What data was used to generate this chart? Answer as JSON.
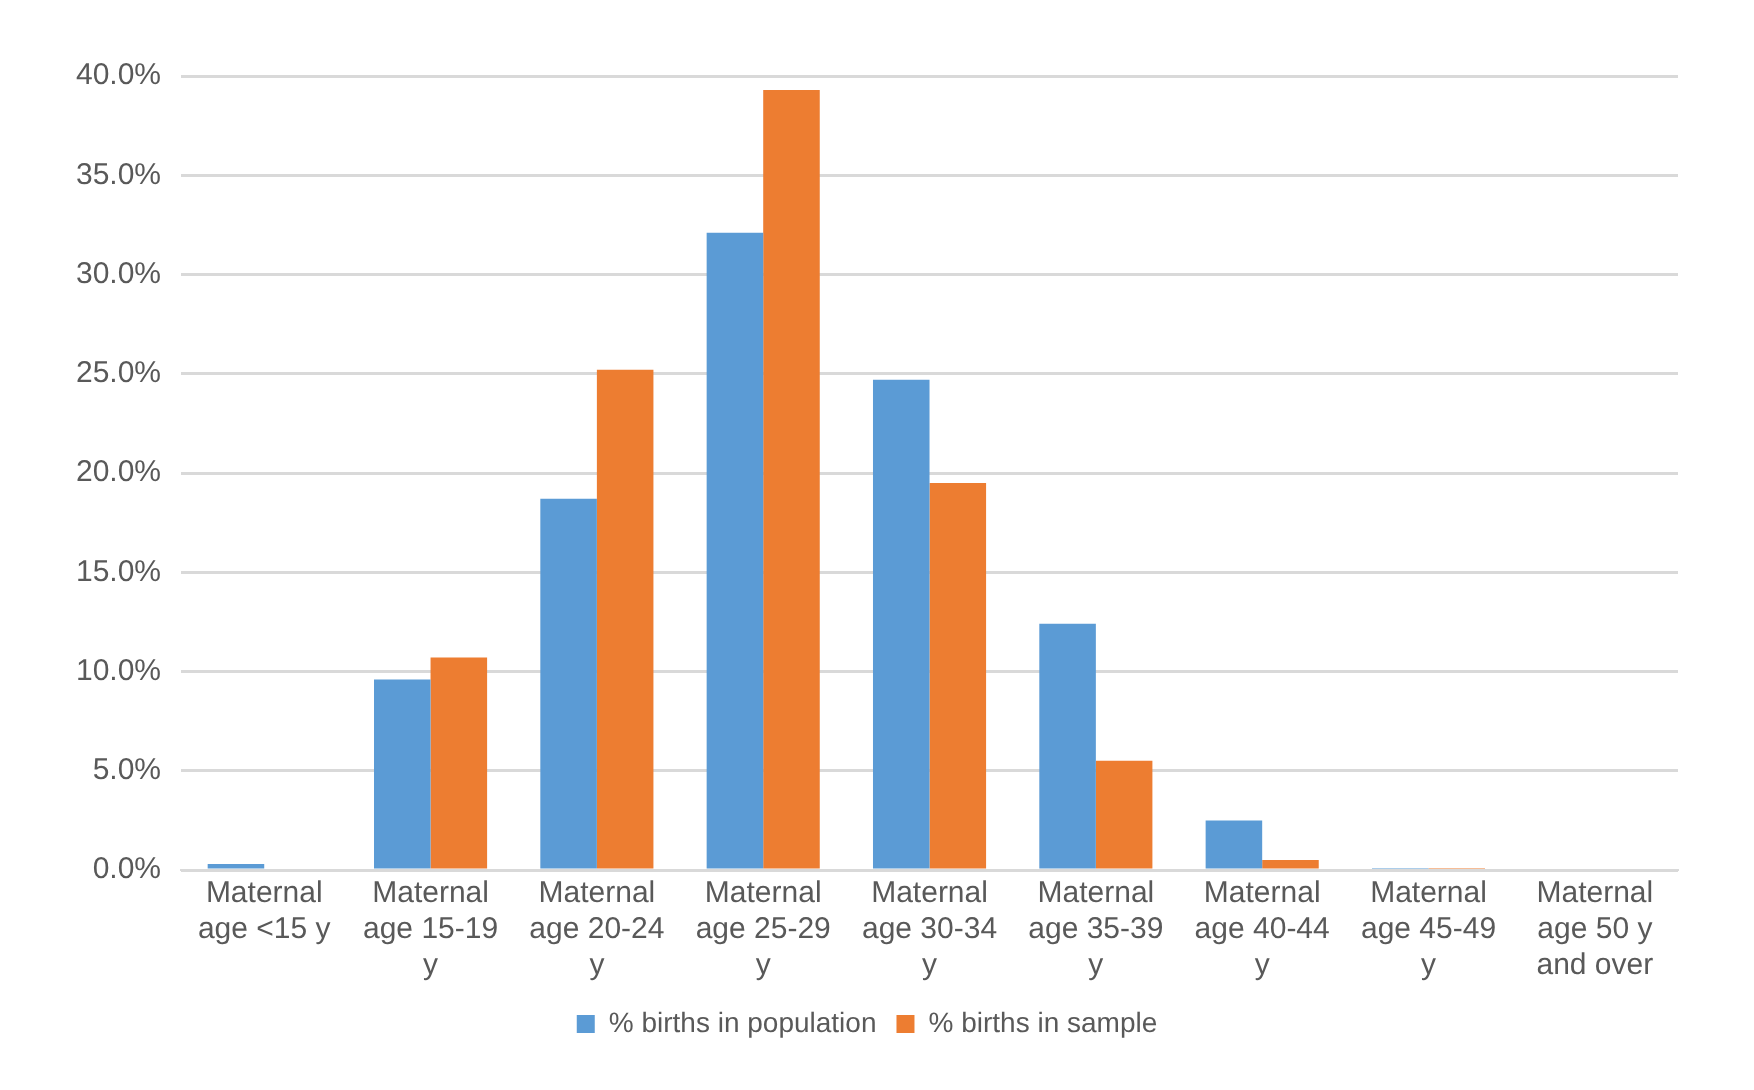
{
  "chart_data": {
    "type": "bar",
    "categories": [
      "Maternal age <15 y",
      "Maternal age 15-19 y",
      "Maternal age 20-24 y",
      "Maternal age 25-29 y",
      "Maternal age 30-34 y",
      "Maternal age 35-39 y",
      "Maternal age 40-44 y",
      "Maternal age 45-49 y",
      "Maternal age 50 y and over"
    ],
    "series": [
      {
        "name": "% births in population",
        "color": "#5b9bd5",
        "values": [
          0.3,
          9.6,
          18.7,
          32.1,
          24.7,
          12.4,
          2.5,
          0.1,
          0.0
        ]
      },
      {
        "name": "% births in sample",
        "color": "#ed7d31",
        "values": [
          0.0,
          10.7,
          25.2,
          39.3,
          19.5,
          5.5,
          0.5,
          0.1,
          0.0
        ]
      }
    ],
    "ylim": [
      0,
      40
    ],
    "yticks": [
      {
        "value": 0,
        "label": "0.0%"
      },
      {
        "value": 5,
        "label": "5.0%"
      },
      {
        "value": 10,
        "label": "10.0%"
      },
      {
        "value": 15,
        "label": "15.0%"
      },
      {
        "value": 20,
        "label": "20.0%"
      },
      {
        "value": 25,
        "label": "25.0%"
      },
      {
        "value": 30,
        "label": "30.0%"
      },
      {
        "value": 35,
        "label": "35.0%"
      },
      {
        "value": 40,
        "label": "40.0%"
      }
    ],
    "grid": "y",
    "legend": "bottom"
  }
}
